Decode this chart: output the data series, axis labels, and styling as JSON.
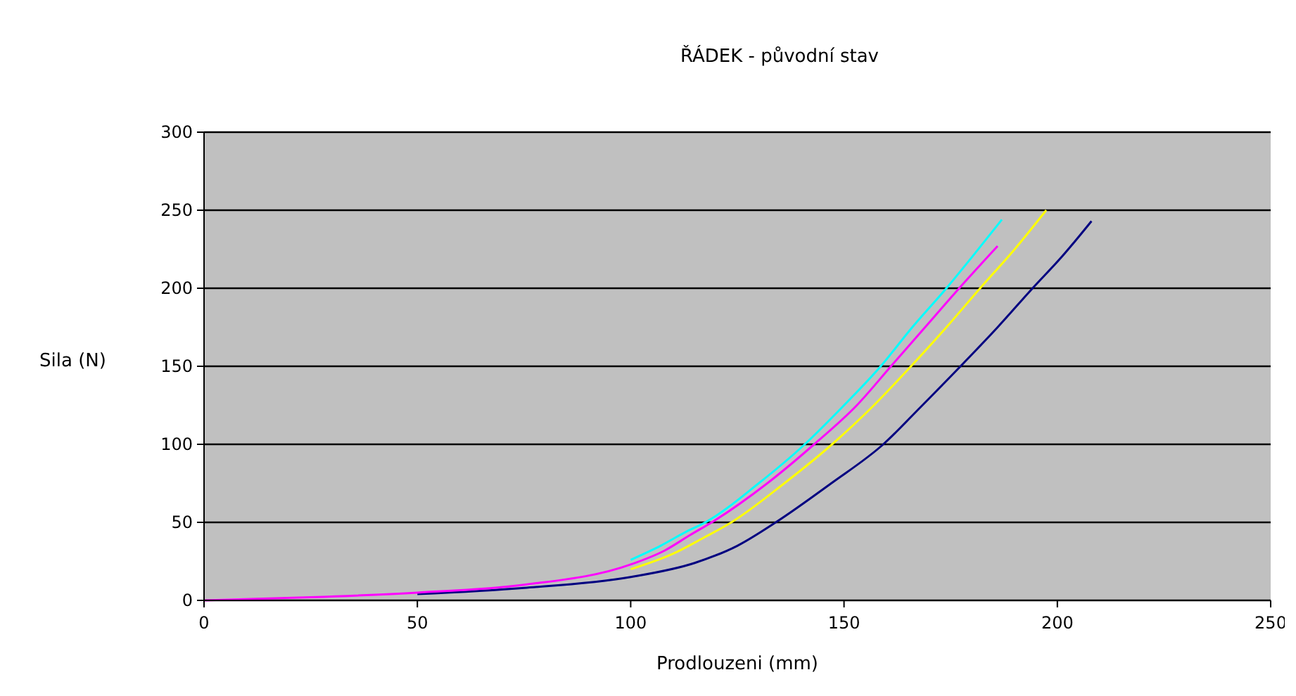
{
  "chart_data": {
    "type": "line",
    "title": "ŘÁDEK - původní stav",
    "xlabel": "Prodlouzeni (mm)",
    "ylabel": "Sila (N)",
    "xlim": [
      0,
      250
    ],
    "ylim": [
      0,
      300
    ],
    "xticks": [
      0,
      50,
      100,
      150,
      200,
      250
    ],
    "yticks": [
      0,
      50,
      100,
      150,
      200,
      250,
      300
    ],
    "grid": "y",
    "marker": "none",
    "line_style": "solid",
    "series": [
      {
        "color": "#000080",
        "x": [
          50,
          75,
          100,
          115,
          125,
          134,
          147,
          159.2,
          168,
          177.3,
          186,
          194.2,
          201,
          208
        ],
        "values": [
          4,
          8,
          15,
          24,
          35,
          50,
          75,
          100,
          124,
          150,
          175,
          200,
          220,
          243
        ]
      },
      {
        "color": "#ffff00",
        "x": [
          100,
          110,
          117,
          123.6,
          136,
          147.2,
          157,
          165.7,
          174,
          181.9,
          190,
          197.4
        ],
        "values": [
          20,
          30,
          40,
          50,
          75,
          100,
          125,
          150,
          175,
          200,
          225,
          250
        ]
      },
      {
        "color": "#00ffff",
        "x": [
          100,
          107,
          113,
          117.5,
          130,
          140.8,
          150,
          158.6,
          166,
          174,
          180,
          187
        ],
        "values": [
          26,
          35,
          44,
          50,
          75,
          100,
          125,
          150,
          175,
          200,
          220,
          244
        ]
      },
      {
        "color": "#ff00ff",
        "x": [
          0,
          25,
          50,
          75,
          100,
          108,
          114,
          119,
          132,
          143,
          153,
          161,
          169,
          177,
          186
        ],
        "values": [
          0,
          2,
          5,
          10,
          23,
          32,
          42,
          50,
          75,
          100,
          125,
          150,
          175,
          200,
          227
        ]
      }
    ]
  }
}
